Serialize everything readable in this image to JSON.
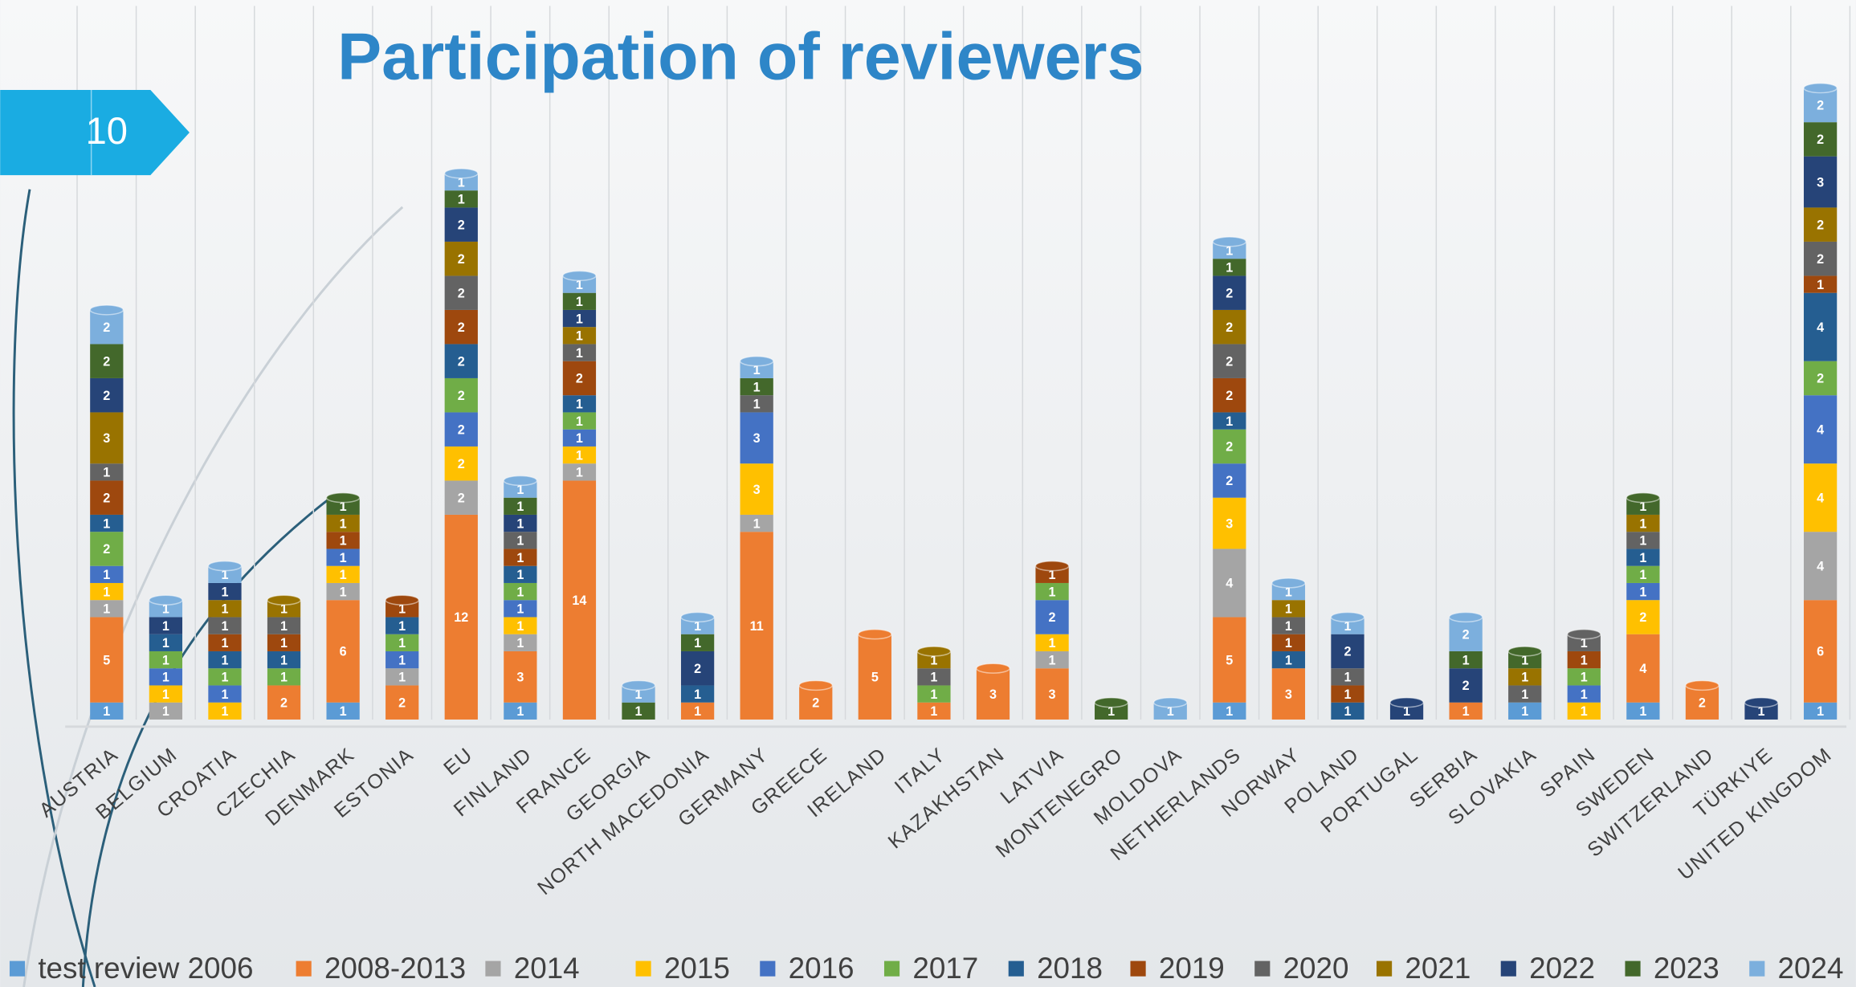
{
  "slide_number": "10",
  "chart_data": {
    "type": "stacked-bar",
    "title": "Participation of reviewers",
    "categories": [
      "AUSTRIA",
      "BELGIUM",
      "CROATIA",
      "CZECHIA",
      "DENMARK",
      "ESTONIA",
      "EU",
      "FINLAND",
      "FRANCE",
      "GEORGIA",
      "NORTH MACEDONIA",
      "GERMANY",
      "GREECE",
      "IRELAND",
      "ITALY",
      "KAZAKHSTAN",
      "LATVIA",
      "MONTENEGRO",
      "MOLDOVA",
      "NETHERLANDS",
      "NORWAY",
      "POLAND",
      "PORTUGAL",
      "SERBIA",
      "SLOVAKIA",
      "SPAIN",
      "SWEDEN",
      "SWITZERLAND",
      "TÜRKIYE",
      "UNITED KINGDOM"
    ],
    "ylim": [
      0,
      38
    ],
    "series": [
      {
        "name": "test review 2006",
        "color": "#5b9bd5",
        "values": [
          1,
          null,
          null,
          null,
          1,
          null,
          null,
          1,
          null,
          null,
          null,
          null,
          null,
          null,
          null,
          null,
          null,
          null,
          null,
          1,
          null,
          null,
          null,
          null,
          1,
          null,
          1,
          null,
          null,
          1
        ]
      },
      {
        "name": "2008-2013",
        "color": "#ed7d31",
        "values": [
          5,
          null,
          null,
          2,
          6,
          2,
          12,
          3,
          14,
          null,
          1,
          11,
          2,
          5,
          1,
          3,
          3,
          null,
          null,
          5,
          3,
          null,
          null,
          1,
          null,
          null,
          4,
          2,
          null,
          6
        ]
      },
      {
        "name": "2014",
        "color": "#a5a5a5",
        "values": [
          1,
          1,
          null,
          null,
          1,
          1,
          2,
          1,
          1,
          null,
          null,
          1,
          null,
          null,
          null,
          null,
          1,
          null,
          null,
          4,
          null,
          null,
          null,
          null,
          null,
          null,
          null,
          null,
          null,
          4
        ]
      },
      {
        "name": "2015",
        "color": "#ffc000",
        "values": [
          1,
          1,
          1,
          null,
          1,
          null,
          2,
          1,
          1,
          null,
          null,
          3,
          null,
          null,
          null,
          null,
          1,
          null,
          null,
          3,
          null,
          null,
          null,
          null,
          null,
          1,
          2,
          null,
          null,
          4
        ]
      },
      {
        "name": "2016",
        "color": "#4472c4",
        "values": [
          1,
          1,
          1,
          null,
          1,
          1,
          2,
          1,
          1,
          null,
          null,
          3,
          null,
          null,
          null,
          null,
          2,
          null,
          null,
          2,
          null,
          null,
          null,
          null,
          null,
          1,
          1,
          null,
          null,
          4
        ]
      },
      {
        "name": "2017",
        "color": "#70ad47",
        "values": [
          2,
          1,
          1,
          1,
          null,
          1,
          2,
          1,
          1,
          null,
          null,
          null,
          null,
          null,
          1,
          null,
          1,
          null,
          null,
          2,
          null,
          null,
          null,
          null,
          null,
          1,
          1,
          null,
          null,
          2
        ]
      },
      {
        "name": "2018",
        "color": "#255e91",
        "values": [
          1,
          1,
          1,
          1,
          null,
          1,
          2,
          1,
          1,
          null,
          1,
          null,
          null,
          null,
          null,
          null,
          null,
          null,
          null,
          1,
          1,
          1,
          null,
          null,
          null,
          null,
          1,
          null,
          null,
          4
        ]
      },
      {
        "name": "2019",
        "color": "#9e480e",
        "values": [
          2,
          null,
          1,
          1,
          1,
          1,
          2,
          1,
          2,
          null,
          null,
          null,
          null,
          null,
          null,
          null,
          1,
          null,
          null,
          2,
          1,
          1,
          null,
          null,
          null,
          1,
          null,
          null,
          null,
          1
        ]
      },
      {
        "name": "2020",
        "color": "#636363",
        "values": [
          1,
          null,
          1,
          1,
          null,
          null,
          2,
          1,
          1,
          null,
          null,
          1,
          null,
          null,
          1,
          null,
          null,
          null,
          null,
          2,
          1,
          1,
          null,
          null,
          1,
          1,
          1,
          null,
          null,
          2
        ]
      },
      {
        "name": "2021",
        "color": "#997300",
        "values": [
          3,
          null,
          1,
          1,
          1,
          null,
          2,
          null,
          1,
          null,
          null,
          null,
          null,
          null,
          1,
          null,
          null,
          null,
          null,
          2,
          1,
          null,
          null,
          null,
          1,
          null,
          1,
          null,
          null,
          2
        ]
      },
      {
        "name": "2022",
        "color": "#264478",
        "values": [
          2,
          1,
          1,
          null,
          null,
          null,
          2,
          1,
          1,
          null,
          2,
          null,
          null,
          null,
          null,
          null,
          null,
          null,
          null,
          2,
          null,
          2,
          1,
          2,
          null,
          null,
          null,
          null,
          1,
          3
        ]
      },
      {
        "name": "2023",
        "color": "#43682b",
        "values": [
          2,
          null,
          null,
          null,
          1,
          null,
          1,
          1,
          1,
          1,
          1,
          1,
          null,
          null,
          null,
          null,
          null,
          1,
          null,
          1,
          null,
          null,
          null,
          1,
          1,
          null,
          1,
          null,
          null,
          2
        ]
      },
      {
        "name": "2024",
        "color": "#7cafdd",
        "values": [
          2,
          1,
          1,
          null,
          null,
          null,
          1,
          1,
          1,
          1,
          1,
          1,
          null,
          null,
          null,
          null,
          null,
          null,
          1,
          1,
          1,
          1,
          null,
          2,
          null,
          null,
          null,
          null,
          null,
          2
        ]
      }
    ]
  }
}
